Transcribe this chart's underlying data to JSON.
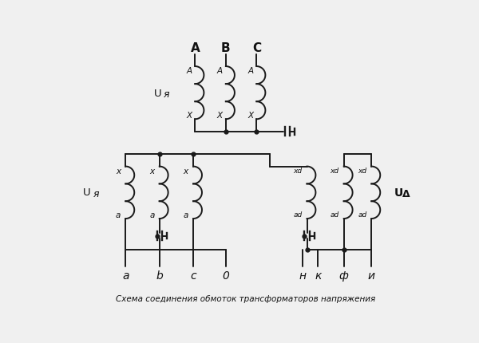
{
  "title": "Схема соединения обмоток трансформаторов напряжения",
  "bg_color": "#f0f0f0",
  "line_color": "#1a1a1a",
  "text_color": "#111111",
  "top_labels": [
    "A",
    "B",
    "C"
  ],
  "bottom_labels_left": [
    "a",
    "b",
    "c",
    "0"
  ],
  "bottom_labels_right": [
    "н",
    "к",
    "ф",
    "и"
  ],
  "coil_loops": 3,
  "lw": 1.4
}
